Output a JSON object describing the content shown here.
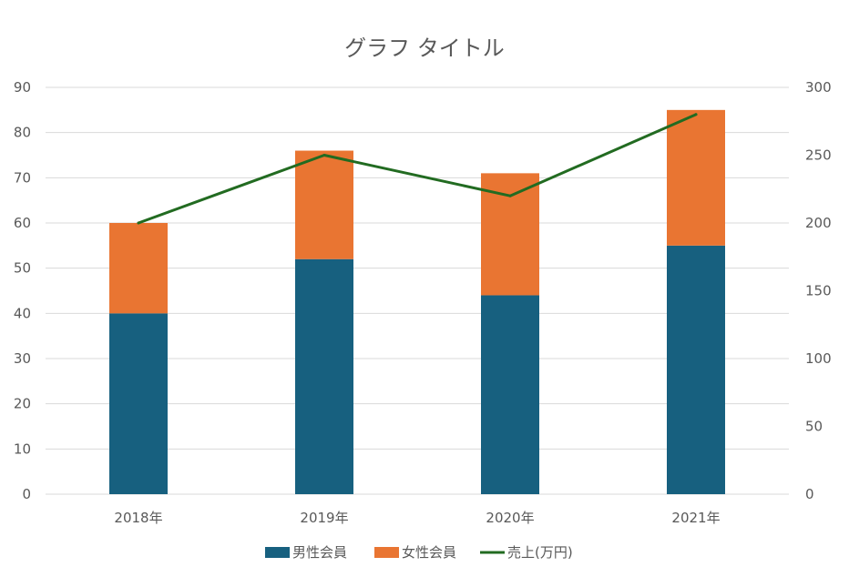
{
  "chart_data": {
    "type": "bar",
    "stacked": true,
    "title": "グラフ タイトル",
    "categories": [
      "2018年",
      "2019年",
      "2020年",
      "2021年"
    ],
    "series": [
      {
        "name": "男性会員",
        "type": "bar",
        "axis": "left",
        "color": "#17607f",
        "values": [
          40,
          52,
          44,
          55
        ]
      },
      {
        "name": "女性会員",
        "type": "bar",
        "axis": "left",
        "color": "#e97532",
        "values": [
          20,
          24,
          27,
          30
        ]
      },
      {
        "name": "売上(万円)",
        "type": "line",
        "axis": "right",
        "color": "#226b21",
        "values": [
          200,
          250,
          220,
          280
        ]
      }
    ],
    "y_left": {
      "min": 0,
      "max": 90,
      "step": 10,
      "ticks": [
        "0",
        "10",
        "20",
        "30",
        "40",
        "50",
        "60",
        "70",
        "80",
        "90"
      ]
    },
    "y_right": {
      "min": 0,
      "max": 300,
      "step": 50,
      "ticks": [
        "0",
        "50",
        "100",
        "150",
        "200",
        "250",
        "300"
      ]
    },
    "grid": true,
    "legend_position": "bottom"
  }
}
